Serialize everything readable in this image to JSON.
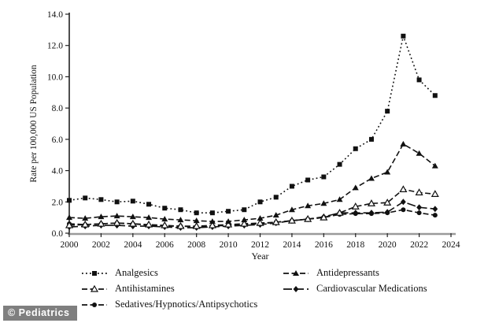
{
  "watermark": "© Pediatrics",
  "chart_data": {
    "type": "line",
    "title": "",
    "xlabel": "Year",
    "ylabel": "Rate per 100,000 US Population",
    "xlim": [
      2000,
      2024
    ],
    "ylim": [
      0,
      14
    ],
    "x_ticks": [
      2000,
      2002,
      2004,
      2006,
      2008,
      2010,
      2012,
      2014,
      2016,
      2018,
      2020,
      2022,
      2024
    ],
    "y_ticks": [
      0,
      2,
      4,
      6,
      8,
      10,
      12,
      14
    ],
    "grid": false,
    "legend_position": "bottom",
    "line_color": "#111111",
    "x": [
      2000,
      2001,
      2002,
      2003,
      2004,
      2005,
      2006,
      2007,
      2008,
      2009,
      2010,
      2011,
      2012,
      2013,
      2014,
      2015,
      2016,
      2017,
      2018,
      2019,
      2020,
      2021,
      2022,
      2023
    ],
    "series": [
      {
        "name": "Analgesics",
        "marker": "filled-square",
        "line": "dotted",
        "values": [
          2.1,
          2.25,
          2.15,
          2.0,
          2.05,
          1.85,
          1.6,
          1.5,
          1.3,
          1.3,
          1.4,
          1.5,
          2.0,
          2.3,
          3.0,
          3.4,
          3.6,
          4.4,
          5.4,
          6.0,
          7.8,
          12.6,
          9.8,
          8.8
        ]
      },
      {
        "name": "Antidepressants",
        "marker": "filled-triangle",
        "line": "dashed",
        "values": [
          1.0,
          0.95,
          1.05,
          1.1,
          1.05,
          1.0,
          0.9,
          0.85,
          0.8,
          0.75,
          0.75,
          0.85,
          0.95,
          1.15,
          1.5,
          1.75,
          1.9,
          2.15,
          2.9,
          3.5,
          3.9,
          5.7,
          5.1,
          4.3
        ]
      },
      {
        "name": "Antihistamines",
        "marker": "open-triangle",
        "line": "dashed",
        "values": [
          0.5,
          0.55,
          0.6,
          0.65,
          0.6,
          0.55,
          0.5,
          0.45,
          0.45,
          0.5,
          0.55,
          0.6,
          0.65,
          0.7,
          0.8,
          0.9,
          1.0,
          1.3,
          1.7,
          1.9,
          1.95,
          2.8,
          2.6,
          2.5
        ]
      },
      {
        "name": "Cardiovascular Medications",
        "marker": "filled-diamond",
        "line": "longdash",
        "values": [
          0.4,
          0.45,
          0.5,
          0.5,
          0.45,
          0.45,
          0.4,
          0.35,
          0.35,
          0.4,
          0.45,
          0.5,
          0.55,
          0.65,
          0.8,
          0.9,
          1.05,
          1.3,
          1.3,
          1.3,
          1.35,
          2.0,
          1.65,
          1.55
        ]
      },
      {
        "name": "Sedatives/Hypnotics/Antipsychotics",
        "marker": "filled-circle",
        "line": "dashed",
        "values": [
          0.6,
          0.55,
          0.6,
          0.65,
          0.6,
          0.5,
          0.45,
          0.45,
          0.4,
          0.45,
          0.5,
          0.55,
          0.6,
          0.7,
          0.8,
          0.9,
          1.0,
          1.2,
          1.25,
          1.25,
          1.3,
          1.5,
          1.3,
          1.15
        ]
      }
    ]
  }
}
